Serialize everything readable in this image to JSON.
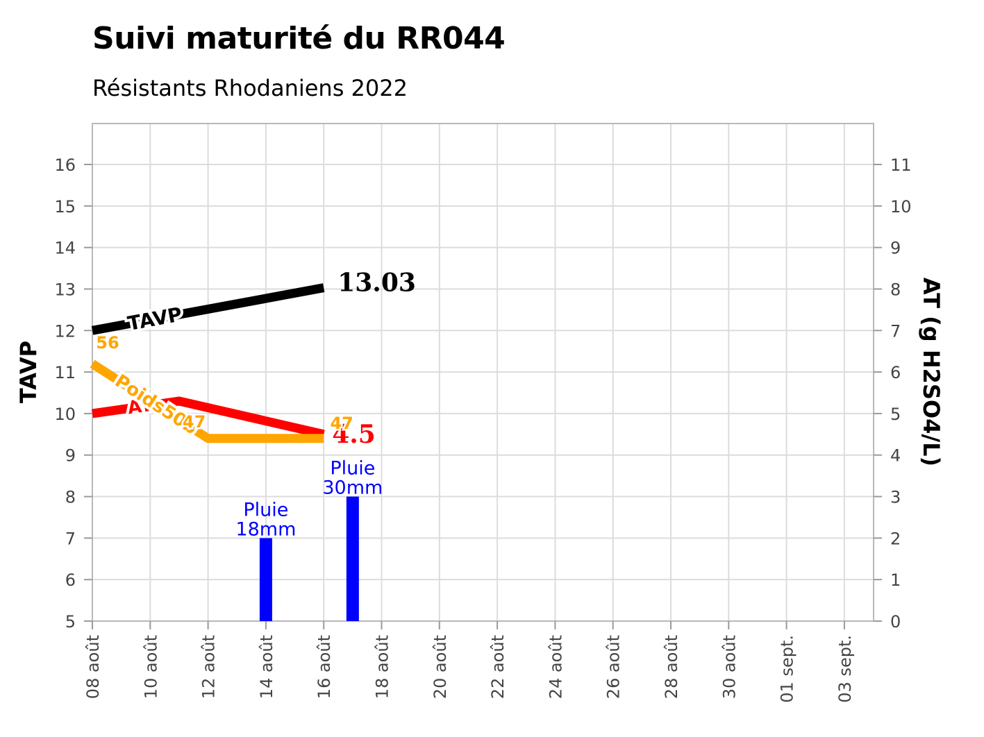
{
  "chart_data": {
    "type": "line",
    "title": "Suivi maturité du RR044",
    "subtitle": "Résistants Rhodaniens 2022",
    "ylabel": "TAVP",
    "y2label": "AT (g H2SO4/L)",
    "xlim": [
      "2022-08-08",
      "2022-09-04"
    ],
    "ylim": [
      5,
      17
    ],
    "y2lim": [
      0,
      12
    ],
    "grid": true,
    "x_ticks": [
      "08 août",
      "10 août",
      "12 août",
      "14 août",
      "16 août",
      "18 août",
      "20 août",
      "22 août",
      "24 août",
      "26 août",
      "28 août",
      "30 août",
      "01 sept.",
      "03 sept."
    ],
    "x_tick_dates": [
      "2022-08-08",
      "2022-08-10",
      "2022-08-12",
      "2022-08-14",
      "2022-08-16",
      "2022-08-18",
      "2022-08-20",
      "2022-08-22",
      "2022-08-24",
      "2022-08-26",
      "2022-08-28",
      "2022-08-30",
      "2022-09-01",
      "2022-09-03"
    ],
    "y_ticks": [
      "5",
      "6",
      "7",
      "8",
      "9",
      "10",
      "11",
      "12",
      "13",
      "14",
      "15",
      "16"
    ],
    "y2_ticks": [
      "0",
      "1",
      "2",
      "3",
      "4",
      "5",
      "6",
      "7",
      "8",
      "9",
      "10",
      "11"
    ],
    "series": [
      {
        "name": "TAVP",
        "axis": "left",
        "color": "#000000",
        "x": [
          "2022-08-08",
          "2022-08-16"
        ],
        "y": [
          12.0,
          13.03
        ],
        "end_label": "13.03"
      },
      {
        "name": "AT",
        "axis": "right",
        "color": "#ff0000",
        "x": [
          "2022-08-08",
          "2022-08-11",
          "2022-08-16"
        ],
        "y": [
          5.0,
          5.3,
          4.5
        ],
        "end_label": "4.5"
      },
      {
        "name": "Poids50b",
        "axis": "left",
        "color": "#ffa500",
        "x": [
          "2022-08-08",
          "2022-08-12",
          "2022-08-16"
        ],
        "y": [
          11.2,
          9.4,
          9.4
        ],
        "point_labels": [
          "56",
          "47",
          "47"
        ]
      },
      {
        "name": "Pluie",
        "type": "bar",
        "axis": "right",
        "color": "#0000ff",
        "x": [
          "2022-08-14",
          "2022-08-17"
        ],
        "y": [
          2,
          3
        ],
        "labels": [
          "18mm",
          "30mm"
        ]
      }
    ]
  }
}
